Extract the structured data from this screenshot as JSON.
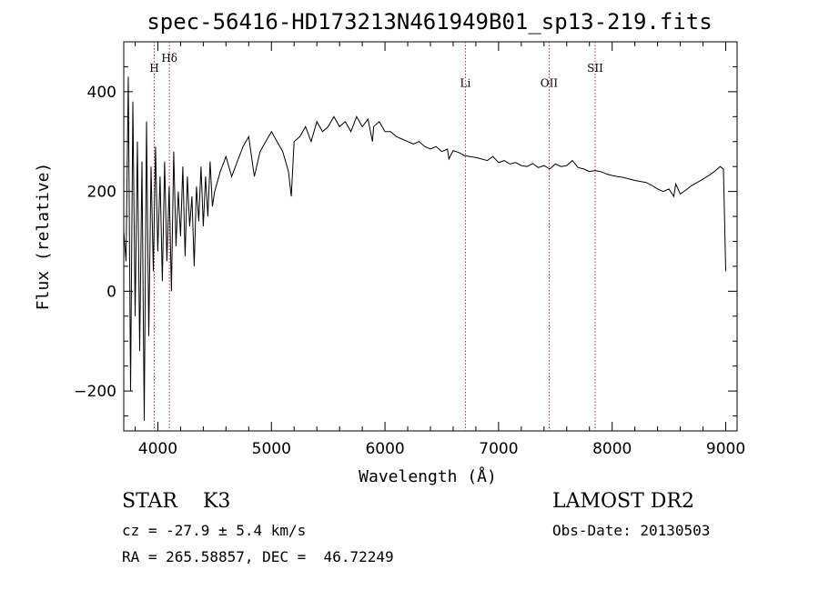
{
  "chart_data": {
    "type": "line",
    "title": "spec-56416-HD173213N461949B01_sp13-219.fits",
    "xlabel": "Wavelength (Å)",
    "ylabel": "Flux (relative)",
    "xlim": [
      3700,
      9100
    ],
    "ylim": [
      -280,
      500
    ],
    "xticks": [
      4000,
      5000,
      6000,
      7000,
      8000,
      9000
    ],
    "yticks": [
      -200,
      0,
      200,
      400
    ],
    "grid": false,
    "line_color": "#000000",
    "marker_color": "#b03030",
    "line_markers": [
      {
        "label": "H",
        "wavelength": 3968,
        "label_flux": 440
      },
      {
        "label": "Hδ",
        "wavelength": 4102,
        "label_flux": 460
      },
      {
        "label": "Li",
        "wavelength": 6708,
        "label_flux": 410
      },
      {
        "label": "OII",
        "wavelength": 7445,
        "label_flux": 410
      },
      {
        "label": "SII",
        "wavelength": 7850,
        "label_flux": 440
      }
    ],
    "series": [
      {
        "x": [
          3700,
          3720,
          3740,
          3760,
          3780,
          3800,
          3820,
          3840,
          3860,
          3880,
          3900,
          3920,
          3940,
          3960,
          3980,
          4000,
          4020,
          4040,
          4060,
          4080,
          4100,
          4120,
          4140,
          4160,
          4180,
          4200,
          4220,
          4240,
          4260,
          4280,
          4300,
          4320,
          4340,
          4360,
          4380,
          4400,
          4420,
          4440,
          4460,
          4480,
          4500,
          4550,
          4600,
          4650,
          4700,
          4750,
          4800,
          4850,
          4900,
          4950,
          5000,
          5050,
          5100,
          5150,
          5175,
          5200,
          5250,
          5300,
          5350,
          5400,
          5450,
          5500,
          5550,
          5600,
          5650,
          5700,
          5750,
          5800,
          5850,
          5890,
          5900,
          5950,
          6000,
          6050,
          6100,
          6150,
          6200,
          6250,
          6300,
          6350,
          6400,
          6450,
          6500,
          6550,
          6563,
          6600,
          6650,
          6700,
          6750,
          6800,
          6850,
          6900,
          6950,
          7000,
          7050,
          7100,
          7150,
          7200,
          7250,
          7300,
          7350,
          7400,
          7450,
          7500,
          7550,
          7600,
          7650,
          7700,
          7750,
          7800,
          7850,
          7900,
          7950,
          8000,
          8050,
          8100,
          8150,
          8200,
          8250,
          8300,
          8350,
          8400,
          8450,
          8500,
          8542,
          8560,
          8600,
          8662,
          8700,
          8750,
          8800,
          8850,
          8900,
          8950,
          8980,
          9000
        ],
        "y": [
          120,
          60,
          430,
          -200,
          380,
          -50,
          300,
          -120,
          260,
          -260,
          340,
          -90,
          250,
          40,
          290,
          80,
          230,
          20,
          260,
          60,
          210,
          0,
          280,
          90,
          200,
          110,
          250,
          70,
          230,
          130,
          190,
          50,
          210,
          140,
          250,
          130,
          230,
          150,
          260,
          170,
          200,
          240,
          270,
          230,
          260,
          290,
          310,
          230,
          280,
          300,
          320,
          300,
          280,
          240,
          190,
          300,
          310,
          330,
          300,
          340,
          320,
          330,
          350,
          330,
          340,
          320,
          350,
          330,
          345,
          300,
          330,
          340,
          320,
          320,
          310,
          305,
          300,
          295,
          300,
          290,
          285,
          290,
          280,
          285,
          265,
          282,
          278,
          272,
          270,
          268,
          265,
          262,
          270,
          258,
          262,
          255,
          258,
          252,
          250,
          256,
          248,
          252,
          245,
          255,
          250,
          252,
          262,
          248,
          245,
          240,
          242,
          240,
          235,
          232,
          230,
          228,
          225,
          222,
          220,
          218,
          212,
          205,
          200,
          205,
          190,
          215,
          195,
          205,
          212,
          218,
          225,
          232,
          240,
          250,
          245,
          40
        ]
      }
    ]
  },
  "info": {
    "star_class": "STAR    K3",
    "cz": "cz = -27.9 ± 5.4 km/s",
    "coords": "RA = 265.58857, DEC =  46.72249",
    "survey": "LAMOST DR2",
    "obs_date": "Obs-Date: 20130503"
  }
}
